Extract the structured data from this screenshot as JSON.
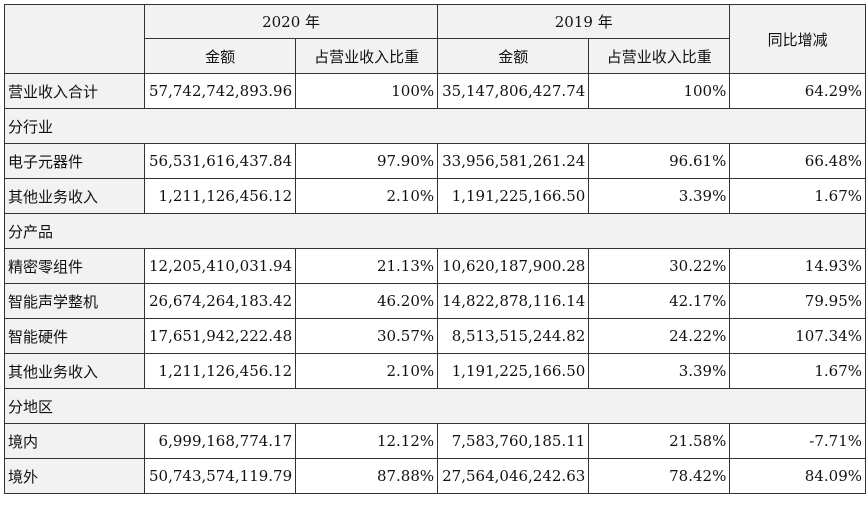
{
  "header": {
    "year_2020": "2020 年",
    "year_2019": "2019 年",
    "yoy": "同比增减",
    "amount": "金额",
    "share": "占营业收入比重"
  },
  "rows": [
    {
      "type": "data",
      "label": "营业收入合计",
      "amt2020": "57,742,742,893.96",
      "pct2020": "100%",
      "amt2019": "35,147,806,427.74",
      "pct2019": "100%",
      "yoy": "64.29%"
    },
    {
      "type": "section",
      "label": "分行业"
    },
    {
      "type": "data",
      "label": "电子元器件",
      "amt2020": "56,531,616,437.84",
      "pct2020": "97.90%",
      "amt2019": "33,956,581,261.24",
      "pct2019": "96.61%",
      "yoy": "66.48%"
    },
    {
      "type": "data",
      "label": "其他业务收入",
      "amt2020": "1,211,126,456.12",
      "pct2020": "2.10%",
      "amt2019": "1,191,225,166.50",
      "pct2019": "3.39%",
      "yoy": "1.67%"
    },
    {
      "type": "section",
      "label": "分产品"
    },
    {
      "type": "data",
      "label": "精密零组件",
      "amt2020": "12,205,410,031.94",
      "pct2020": "21.13%",
      "amt2019": "10,620,187,900.28",
      "pct2019": "30.22%",
      "yoy": "14.93%"
    },
    {
      "type": "data",
      "label": "智能声学整机",
      "amt2020": "26,674,264,183.42",
      "pct2020": "46.20%",
      "amt2019": "14,822,878,116.14",
      "pct2019": "42.17%",
      "yoy": "79.95%"
    },
    {
      "type": "data",
      "label": "智能硬件",
      "amt2020": "17,651,942,222.48",
      "pct2020": "30.57%",
      "amt2019": "8,513,515,244.82",
      "pct2019": "24.22%",
      "yoy": "107.34%"
    },
    {
      "type": "data",
      "label": "其他业务收入",
      "amt2020": "1,211,126,456.12",
      "pct2020": "2.10%",
      "amt2019": "1,191,225,166.50",
      "pct2019": "3.39%",
      "yoy": "1.67%"
    },
    {
      "type": "section",
      "label": "分地区"
    },
    {
      "type": "data",
      "label": "境内",
      "amt2020": "6,999,168,774.17",
      "pct2020": "12.12%",
      "amt2019": "7,583,760,185.11",
      "pct2019": "21.58%",
      "yoy": "-7.71%"
    },
    {
      "type": "data",
      "label": "境外",
      "amt2020": "50,743,574,119.79",
      "pct2020": "87.88%",
      "amt2019": "27,564,046,242.63",
      "pct2019": "78.42%",
      "yoy": "84.09%"
    }
  ]
}
